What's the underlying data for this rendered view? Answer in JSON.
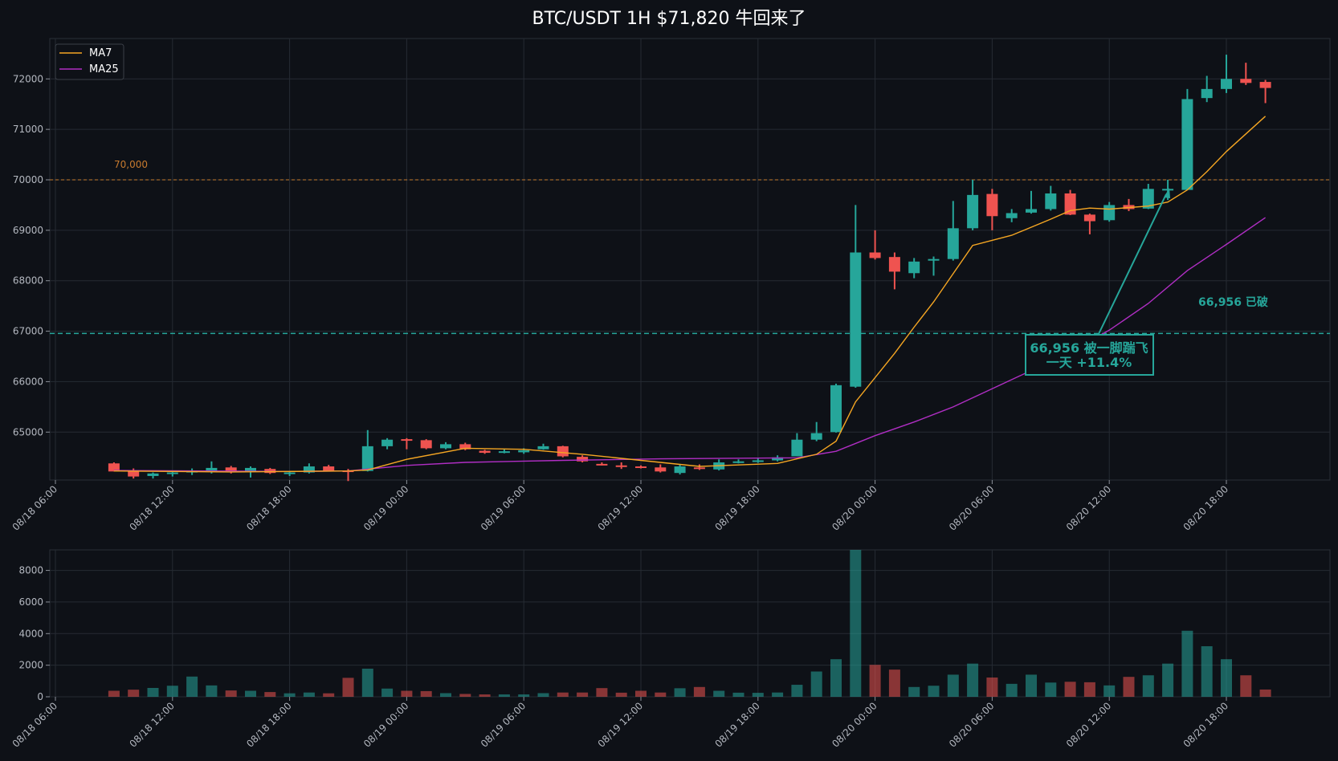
{
  "title": "BTC/USDT  1H  $71,820  牛回来了",
  "colors": {
    "background": "#0e1117",
    "up": "#26a69a",
    "down": "#ef5350",
    "ma7": "#f5a623",
    "ma25": "#b02ec4",
    "level_70000": "#c77a2e",
    "level_66956": "#26a69a",
    "grid": "#262b33"
  },
  "legend": {
    "ma7": "MA7",
    "ma25": "MA25"
  },
  "annotations": {
    "level_70000_label": "70,000",
    "level_66956_label": "66,956 已破",
    "box_line1": "66,956 被一脚踹飞",
    "box_line2": "一天 +11.4%"
  },
  "chart_data": [
    {
      "type": "candlestick",
      "title": "BTC/USDT  1H  $71,820  牛回来了",
      "interval": "1H",
      "x_start": "08/18 06:00",
      "x_ticks": [
        "08/18 06:00",
        "08/18 12:00",
        "08/18 18:00",
        "08/19 00:00",
        "08/19 06:00",
        "08/19 12:00",
        "08/19 18:00",
        "08/20 00:00",
        "08/20 06:00",
        "08/20 12:00",
        "08/20 18:00"
      ],
      "ylim": [
        64050,
        72800
      ],
      "yticks": [
        65000,
        66000,
        67000,
        68000,
        69000,
        70000,
        71000,
        72000
      ],
      "grid": true,
      "legend_position": "top-left",
      "hlines": [
        70000,
        66956
      ],
      "candles": [
        {
          "t": "08/18 09:00",
          "o": 64380,
          "h": 64400,
          "l": 64220,
          "c": 64220
        },
        {
          "t": "08/18 10:00",
          "o": 64220,
          "h": 64280,
          "l": 64080,
          "c": 64120
        },
        {
          "t": "08/18 11:00",
          "o": 64130,
          "h": 64200,
          "l": 64080,
          "c": 64180
        },
        {
          "t": "08/18 12:00",
          "o": 64180,
          "h": 64240,
          "l": 64120,
          "c": 64200
        },
        {
          "t": "08/18 13:00",
          "o": 64200,
          "h": 64280,
          "l": 64150,
          "c": 64240
        },
        {
          "t": "08/18 14:00",
          "o": 64230,
          "h": 64420,
          "l": 64180,
          "c": 64290
        },
        {
          "t": "08/18 15:00",
          "o": 64300,
          "h": 64330,
          "l": 64180,
          "c": 64210
        },
        {
          "t": "08/18 16:00",
          "o": 64220,
          "h": 64320,
          "l": 64100,
          "c": 64290
        },
        {
          "t": "08/18 17:00",
          "o": 64270,
          "h": 64290,
          "l": 64170,
          "c": 64190
        },
        {
          "t": "08/18 18:00",
          "o": 64170,
          "h": 64230,
          "l": 64130,
          "c": 64200
        },
        {
          "t": "08/18 19:00",
          "o": 64200,
          "h": 64380,
          "l": 64180,
          "c": 64320
        },
        {
          "t": "08/18 20:00",
          "o": 64320,
          "h": 64350,
          "l": 64220,
          "c": 64230
        },
        {
          "t": "08/18 21:00",
          "o": 64240,
          "h": 64270,
          "l": 64030,
          "c": 64230
        },
        {
          "t": "08/18 22:00",
          "o": 64230,
          "h": 65040,
          "l": 64220,
          "c": 64720
        },
        {
          "t": "08/18 23:00",
          "o": 64720,
          "h": 64880,
          "l": 64660,
          "c": 64850
        },
        {
          "t": "08/19 00:00",
          "o": 64860,
          "h": 64880,
          "l": 64660,
          "c": 64840
        },
        {
          "t": "08/19 01:00",
          "o": 64840,
          "h": 64860,
          "l": 64660,
          "c": 64680
        },
        {
          "t": "08/19 02:00",
          "o": 64680,
          "h": 64800,
          "l": 64660,
          "c": 64760
        },
        {
          "t": "08/19 03:00",
          "o": 64760,
          "h": 64790,
          "l": 64640,
          "c": 64660
        },
        {
          "t": "08/19 04:00",
          "o": 64630,
          "h": 64650,
          "l": 64570,
          "c": 64590
        },
        {
          "t": "08/19 05:00",
          "o": 64600,
          "h": 64660,
          "l": 64580,
          "c": 64620
        },
        {
          "t": "08/19 06:00",
          "o": 64600,
          "h": 64680,
          "l": 64570,
          "c": 64640
        },
        {
          "t": "08/19 07:00",
          "o": 64660,
          "h": 64770,
          "l": 64650,
          "c": 64720
        },
        {
          "t": "08/19 08:00",
          "o": 64720,
          "h": 64730,
          "l": 64500,
          "c": 64520
        },
        {
          "t": "08/19 09:00",
          "o": 64510,
          "h": 64540,
          "l": 64400,
          "c": 64420
        },
        {
          "t": "08/19 10:00",
          "o": 64370,
          "h": 64400,
          "l": 64340,
          "c": 64350
        },
        {
          "t": "08/19 11:00",
          "o": 64340,
          "h": 64400,
          "l": 64270,
          "c": 64320
        },
        {
          "t": "08/19 12:00",
          "o": 64320,
          "h": 64340,
          "l": 64280,
          "c": 64300
        },
        {
          "t": "08/19 13:00",
          "o": 64300,
          "h": 64360,
          "l": 64200,
          "c": 64220
        },
        {
          "t": "08/19 14:00",
          "o": 64190,
          "h": 64360,
          "l": 64160,
          "c": 64320
        },
        {
          "t": "08/19 15:00",
          "o": 64300,
          "h": 64360,
          "l": 64250,
          "c": 64280
        },
        {
          "t": "08/19 16:00",
          "o": 64260,
          "h": 64460,
          "l": 64240,
          "c": 64400
        },
        {
          "t": "08/19 17:00",
          "o": 64400,
          "h": 64460,
          "l": 64380,
          "c": 64420
        },
        {
          "t": "08/19 18:00",
          "o": 64420,
          "h": 64480,
          "l": 64390,
          "c": 64440
        },
        {
          "t": "08/19 19:00",
          "o": 64440,
          "h": 64540,
          "l": 64420,
          "c": 64500
        },
        {
          "t": "08/19 20:00",
          "o": 64520,
          "h": 64980,
          "l": 64520,
          "c": 64850
        },
        {
          "t": "08/19 21:00",
          "o": 64850,
          "h": 65200,
          "l": 64820,
          "c": 64980
        },
        {
          "t": "08/19 22:00",
          "o": 65000,
          "h": 65960,
          "l": 64990,
          "c": 65930
        },
        {
          "t": "08/19 23:00",
          "o": 65900,
          "h": 69500,
          "l": 65880,
          "c": 68560
        },
        {
          "t": "08/20 00:00",
          "o": 68560,
          "h": 69000,
          "l": 68420,
          "c": 68450
        },
        {
          "t": "08/20 01:00",
          "o": 68470,
          "h": 68560,
          "l": 67830,
          "c": 68180
        },
        {
          "t": "08/20 02:00",
          "o": 68150,
          "h": 68450,
          "l": 68050,
          "c": 68380
        },
        {
          "t": "08/20 03:00",
          "o": 68400,
          "h": 68480,
          "l": 68100,
          "c": 68430
        },
        {
          "t": "08/20 04:00",
          "o": 68430,
          "h": 69580,
          "l": 68400,
          "c": 69040
        },
        {
          "t": "08/20 05:00",
          "o": 69040,
          "h": 70000,
          "l": 69000,
          "c": 69700
        },
        {
          "t": "08/20 06:00",
          "o": 69720,
          "h": 69820,
          "l": 69000,
          "c": 69280
        },
        {
          "t": "08/20 07:00",
          "o": 69240,
          "h": 69420,
          "l": 69160,
          "c": 69340
        },
        {
          "t": "08/20 08:00",
          "o": 69350,
          "h": 69780,
          "l": 69330,
          "c": 69420
        },
        {
          "t": "08/20 09:00",
          "o": 69420,
          "h": 69880,
          "l": 69390,
          "c": 69730
        },
        {
          "t": "08/20 10:00",
          "o": 69730,
          "h": 69800,
          "l": 69300,
          "c": 69310
        },
        {
          "t": "08/20 11:00",
          "o": 69310,
          "h": 69330,
          "l": 68920,
          "c": 69180
        },
        {
          "t": "08/20 12:00",
          "o": 69200,
          "h": 69560,
          "l": 69170,
          "c": 69500
        },
        {
          "t": "08/20 13:00",
          "o": 69500,
          "h": 69620,
          "l": 69380,
          "c": 69420
        },
        {
          "t": "08/20 14:00",
          "o": 69430,
          "h": 69920,
          "l": 69420,
          "c": 69820
        },
        {
          "t": "08/20 15:00",
          "o": 69820,
          "h": 70000,
          "l": 69600,
          "c": 69820
        },
        {
          "t": "08/20 16:00",
          "o": 69800,
          "h": 71800,
          "l": 69800,
          "c": 71600
        },
        {
          "t": "08/20 17:00",
          "o": 71620,
          "h": 72060,
          "l": 71540,
          "c": 71800
        },
        {
          "t": "08/20 18:00",
          "o": 71800,
          "h": 72480,
          "l": 71720,
          "c": 72000
        },
        {
          "t": "08/20 19:00",
          "o": 72000,
          "h": 72320,
          "l": 71880,
          "c": 71920
        },
        {
          "t": "08/20 20:00",
          "o": 71940,
          "h": 71980,
          "l": 71520,
          "c": 71820
        }
      ],
      "ma7": [
        {
          "t": "08/18 09:00",
          "v": 64230
        },
        {
          "t": "08/18 15:00",
          "v": 64210
        },
        {
          "t": "08/18 21:00",
          "v": 64230
        },
        {
          "t": "08/18 22:00",
          "v": 64250
        },
        {
          "t": "08/19 00:00",
          "v": 64460
        },
        {
          "t": "08/19 03:00",
          "v": 64680
        },
        {
          "t": "08/19 06:00",
          "v": 64660
        },
        {
          "t": "08/19 09:00",
          "v": 64560
        },
        {
          "t": "08/19 12:00",
          "v": 64440
        },
        {
          "t": "08/19 15:00",
          "v": 64320
        },
        {
          "t": "08/19 19:00",
          "v": 64380
        },
        {
          "t": "08/19 21:00",
          "v": 64560
        },
        {
          "t": "08/19 22:00",
          "v": 64820
        },
        {
          "t": "08/19 23:00",
          "v": 65600
        },
        {
          "t": "08/20 01:00",
          "v": 66560
        },
        {
          "t": "08/20 02:00",
          "v": 67080
        },
        {
          "t": "08/20 03:00",
          "v": 67580
        },
        {
          "t": "08/20 05:00",
          "v": 68700
        },
        {
          "t": "08/20 07:00",
          "v": 68900
        },
        {
          "t": "08/20 09:00",
          "v": 69220
        },
        {
          "t": "08/20 10:00",
          "v": 69390
        },
        {
          "t": "08/20 11:00",
          "v": 69440
        },
        {
          "t": "08/20 12:00",
          "v": 69420
        },
        {
          "t": "08/20 14:00",
          "v": 69480
        },
        {
          "t": "08/20 15:00",
          "v": 69560
        },
        {
          "t": "08/20 16:00",
          "v": 69800
        },
        {
          "t": "08/20 17:00",
          "v": 70160
        },
        {
          "t": "08/20 18:00",
          "v": 70560
        },
        {
          "t": "08/20 20:00",
          "v": 71260
        }
      ],
      "ma25": [
        {
          "t": "08/18 09:00",
          "v": 64240
        },
        {
          "t": "08/18 18:00",
          "v": 64220
        },
        {
          "t": "08/18 21:00",
          "v": 64230
        },
        {
          "t": "08/19 00:00",
          "v": 64340
        },
        {
          "t": "08/19 03:00",
          "v": 64400
        },
        {
          "t": "08/19 08:00",
          "v": 64440
        },
        {
          "t": "08/19 13:00",
          "v": 64470
        },
        {
          "t": "08/19 20:00",
          "v": 64490
        },
        {
          "t": "08/19 22:00",
          "v": 64620
        },
        {
          "t": "08/20 00:00",
          "v": 64930
        },
        {
          "t": "08/20 02:00",
          "v": 65200
        },
        {
          "t": "08/20 04:00",
          "v": 65500
        },
        {
          "t": "08/20 06:00",
          "v": 65860
        },
        {
          "t": "08/20 08:00",
          "v": 66220
        },
        {
          "t": "08/20 10:00",
          "v": 66600
        },
        {
          "t": "08/20 12:00",
          "v": 67020
        },
        {
          "t": "08/20 14:00",
          "v": 67550
        },
        {
          "t": "08/20 16:00",
          "v": 68200
        },
        {
          "t": "08/20 18:00",
          "v": 68720
        },
        {
          "t": "08/20 20:00",
          "v": 69250
        }
      ]
    },
    {
      "type": "bar",
      "title": "",
      "ylim": [
        0,
        9300
      ],
      "yticks": [
        0,
        2000,
        4000,
        6000,
        8000
      ],
      "x_ticks": [
        "08/18 06:00",
        "08/18 12:00",
        "08/18 18:00",
        "08/19 00:00",
        "08/19 06:00",
        "08/19 12:00",
        "08/19 18:00",
        "08/20 00:00",
        "08/20 06:00",
        "08/20 12:00",
        "08/20 18:00"
      ],
      "volume": [
        380,
        450,
        560,
        700,
        1280,
        720,
        400,
        380,
        300,
        220,
        270,
        220,
        1200,
        1780,
        520,
        380,
        360,
        230,
        180,
        150,
        150,
        150,
        230,
        270,
        270,
        550,
        260,
        380,
        270,
        540,
        620,
        380,
        260,
        250,
        270,
        760,
        1600,
        2380,
        9300,
        2020,
        1720,
        620,
        700,
        1400,
        2100,
        1220,
        820,
        1400,
        900,
        950,
        920,
        720,
        1260,
        1360,
        2100,
        4180,
        3200,
        2380,
        1360,
        460
      ]
    }
  ]
}
